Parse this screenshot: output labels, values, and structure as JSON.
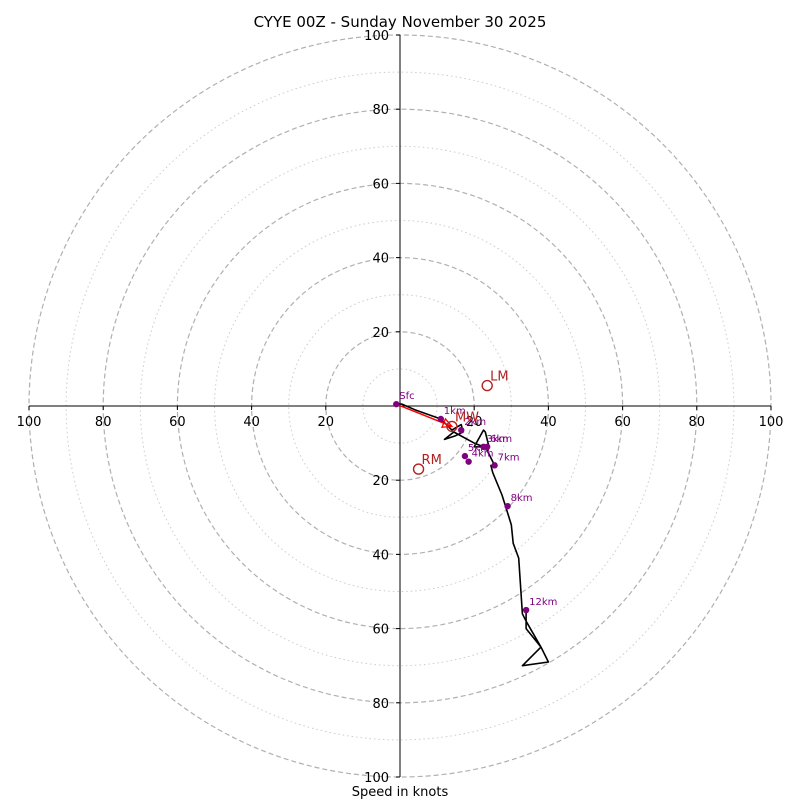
{
  "chart_data": {
    "type": "hodograph",
    "title": "CYYE 00Z - Sunday November 30 2025",
    "xlabel": "Speed in knots",
    "units": "knots",
    "range": [
      -100,
      100
    ],
    "ring_major": [
      20,
      40,
      60,
      80,
      100
    ],
    "ring_minor": [
      10,
      30,
      50,
      70,
      90
    ],
    "tick_labels": {
      "top": [
        "20",
        "40",
        "60",
        "80",
        "100"
      ],
      "bottom": [
        "20",
        "40",
        "60",
        "80",
        "100"
      ],
      "left": [
        "100",
        "80",
        "60",
        "40",
        "20"
      ],
      "right": [
        "20",
        "40",
        "60",
        "80",
        "100"
      ]
    },
    "trace": [
      [
        -1,
        0.5
      ],
      [
        0.5,
        0.5
      ],
      [
        4,
        -1
      ],
      [
        11,
        -3.5
      ],
      [
        14,
        -6.5
      ],
      [
        16.5,
        -5
      ],
      [
        17,
        -7
      ],
      [
        15,
        -8
      ],
      [
        12,
        -9
      ],
      [
        14.5,
        -7
      ],
      [
        20,
        -10
      ],
      [
        22.5,
        -11
      ],
      [
        24,
        -11
      ],
      [
        23,
        -7
      ],
      [
        22.5,
        -6.5
      ],
      [
        20,
        -11
      ],
      [
        23,
        -11
      ],
      [
        23.5,
        -12
      ],
      [
        25.5,
        -16
      ],
      [
        24.5,
        -16
      ],
      [
        25,
        -18
      ],
      [
        27.5,
        -24
      ],
      [
        30,
        -32
      ],
      [
        30.5,
        -37
      ],
      [
        32,
        -41
      ],
      [
        33,
        -56
      ],
      [
        34,
        -58
      ],
      [
        38,
        -65
      ],
      [
        40,
        -69
      ],
      [
        33,
        -70
      ],
      [
        38,
        -65
      ],
      [
        34,
        -60
      ],
      [
        34,
        -55
      ]
    ],
    "height_markers": [
      {
        "label": "Sfc",
        "u": -1,
        "v": 0.5
      },
      {
        "label": "1km",
        "u": 11,
        "v": -3.5
      },
      {
        "label": "2km",
        "u": 16.5,
        "v": -6.5
      },
      {
        "label": "3km",
        "u": 22.5,
        "v": -11
      },
      {
        "label": "4km",
        "u": 18.5,
        "v": -15
      },
      {
        "label": "5km",
        "u": 17.5,
        "v": -13.5
      },
      {
        "label": "6km",
        "u": 23.5,
        "v": -11
      },
      {
        "label": "7km",
        "u": 25.5,
        "v": -16
      },
      {
        "label": "8km",
        "u": 29,
        "v": -27
      },
      {
        "label": "12km",
        "u": 34,
        "v": -55
      }
    ],
    "storm_motion": [
      {
        "label": "LM",
        "u": 23.5,
        "v": 5.5
      },
      {
        "label": "RM",
        "u": 5,
        "v": -17
      },
      {
        "label": "MW",
        "u": 14,
        "v": -5.5
      }
    ],
    "shear_vector": {
      "from": [
        -1,
        0.5
      ],
      "to": [
        14,
        -5.5
      ]
    },
    "colors": {
      "trace": "#000000",
      "markers": "#800080",
      "storm_motion": "#b22222",
      "shear": "#ff0000",
      "grid": "#b0b0b0",
      "axis": "#000000"
    }
  }
}
